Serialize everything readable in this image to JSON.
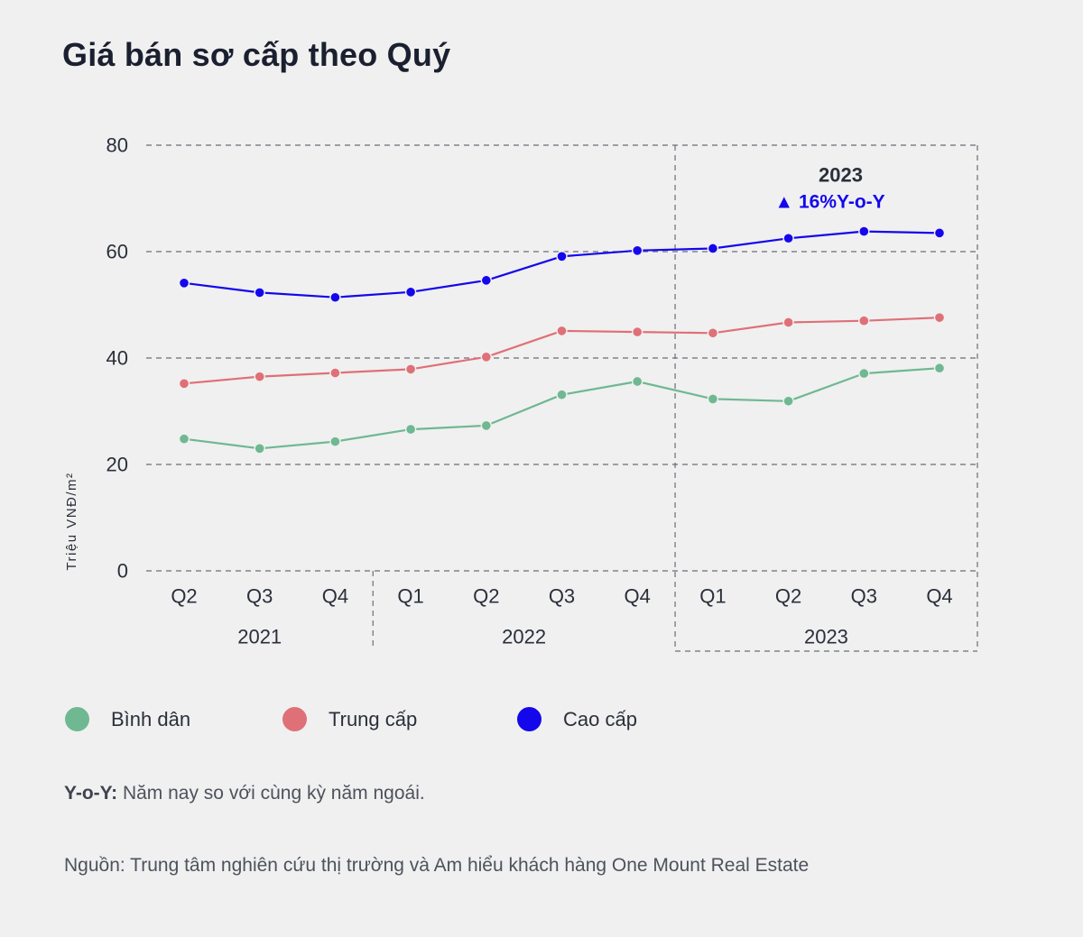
{
  "title": "Giá bán sơ cấp theo Quý",
  "chart_data": {
    "type": "line",
    "title": "Giá bán sơ cấp theo Quý",
    "ylabel": "Triệu  VNĐ/m²",
    "xlabel": "",
    "ylim": [
      0,
      80
    ],
    "yticks": [
      0,
      20,
      40,
      60,
      80
    ],
    "grid": true,
    "categories": [
      "Q2",
      "Q3",
      "Q4",
      "Q1",
      "Q2",
      "Q3",
      "Q4",
      "Q1",
      "Q2",
      "Q3",
      "Q4"
    ],
    "year_groups": [
      {
        "label": "2021",
        "start": 0,
        "end": 2
      },
      {
        "label": "2022",
        "start": 3,
        "end": 6
      },
      {
        "label": "2023",
        "start": 7,
        "end": 10
      }
    ],
    "series": [
      {
        "name": "Bình dân",
        "color": "#6fb892",
        "values": [
          24.8,
          23.0,
          24.3,
          26.6,
          27.3,
          33.1,
          35.6,
          32.3,
          31.9,
          37.1,
          38.1
        ]
      },
      {
        "name": "Trung cấp",
        "color": "#df7077",
        "values": [
          35.2,
          36.5,
          37.2,
          37.9,
          40.2,
          45.1,
          44.9,
          44.7,
          46.7,
          47.0,
          47.6
        ]
      },
      {
        "name": "Cao cấp",
        "color": "#1407ec",
        "values": [
          54.1,
          52.3,
          51.4,
          52.4,
          54.6,
          59.1,
          60.2,
          60.6,
          62.5,
          63.8,
          63.5
        ]
      }
    ],
    "annotation": {
      "year": "2023",
      "text": "▲ 16%Y-o-Y",
      "color": "#1407ec"
    }
  },
  "note": {
    "label": "Y-o-Y:",
    "text": " Năm nay so với cùng kỳ năm ngoái."
  },
  "source": "Nguồn: Trung tâm nghiên cứu thị trường và Am hiểu khách hàng One Mount Real Estate"
}
